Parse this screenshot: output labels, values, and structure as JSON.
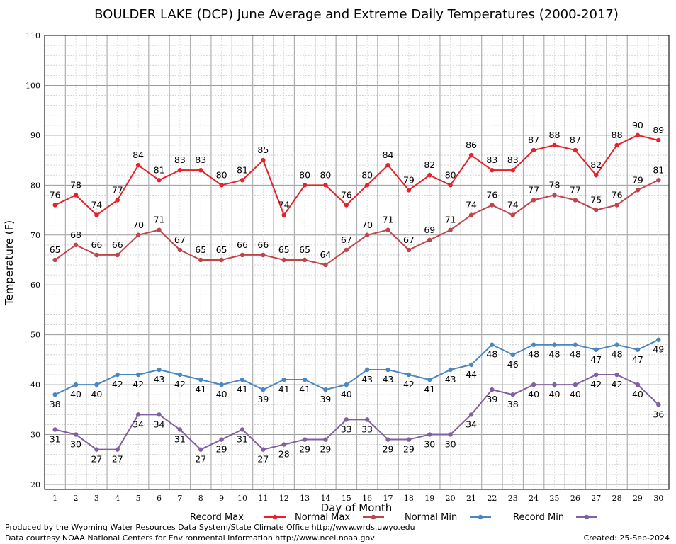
{
  "chart_data": {
    "type": "line",
    "title": "BOULDER LAKE (DCP) June Average and Extreme Daily Temperatures (2000-2017)",
    "xlabel": "Day of Month",
    "ylabel": "Temperature (F)",
    "xlim": [
      1,
      30
    ],
    "ylim": [
      20,
      110
    ],
    "y_ticks": [
      20,
      30,
      40,
      50,
      60,
      70,
      80,
      90,
      100,
      110
    ],
    "grid": true,
    "legend_position": "bottom",
    "x": [
      1,
      2,
      3,
      4,
      5,
      6,
      7,
      8,
      9,
      10,
      11,
      12,
      13,
      14,
      15,
      16,
      17,
      18,
      19,
      20,
      21,
      22,
      23,
      24,
      25,
      26,
      27,
      28,
      29,
      30
    ],
    "series": [
      {
        "name": "Record Max",
        "color": "#e8202a",
        "marker": "circle",
        "values": [
          76,
          78,
          74,
          77,
          84,
          81,
          83,
          83,
          80,
          81,
          85,
          74,
          80,
          80,
          76,
          80,
          84,
          79,
          82,
          80,
          86,
          83,
          83,
          87,
          88,
          87,
          82,
          88,
          90,
          89
        ]
      },
      {
        "name": "Normal Max",
        "color": "#c0454a",
        "marker": "circle",
        "values": [
          65,
          68,
          66,
          66,
          70,
          71,
          67,
          65,
          65,
          66,
          66,
          65,
          65,
          64,
          67,
          70,
          71,
          67,
          69,
          71,
          74,
          76,
          74,
          77,
          78,
          77,
          75,
          76,
          79,
          81
        ]
      },
      {
        "name": "Normal Min",
        "color": "#4a86c0",
        "marker": "circle",
        "values": [
          38,
          40,
          40,
          42,
          42,
          43,
          42,
          41,
          40,
          41,
          39,
          41,
          41,
          39,
          40,
          43,
          43,
          42,
          41,
          43,
          44,
          48,
          46,
          48,
          48,
          48,
          47,
          48,
          47,
          49
        ]
      },
      {
        "name": "Record Min",
        "color": "#8060a0",
        "marker": "circle",
        "values": [
          31,
          30,
          27,
          27,
          34,
          34,
          31,
          27,
          29,
          31,
          27,
          28,
          29,
          29,
          33,
          33,
          29,
          29,
          30,
          30,
          34,
          39,
          38,
          40,
          40,
          40,
          42,
          42,
          40,
          36
        ]
      }
    ]
  },
  "footer": {
    "line1": "Produced by the Wyoming Water Resources Data System/State Climate Office http://www.wrds.uwyo.edu",
    "line2": "Data courtesy NOAA National Centers for Environmental Information http://www.ncei.noaa.gov",
    "created": "Created:  25-Sep-2024"
  }
}
